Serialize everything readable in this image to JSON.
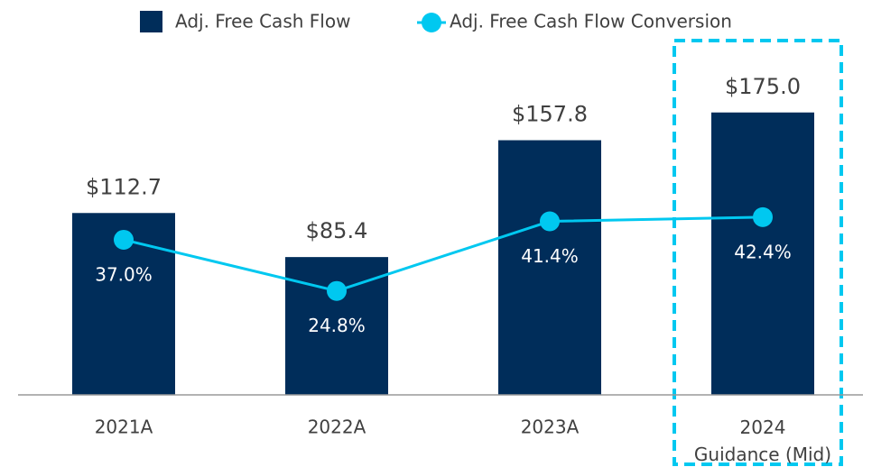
{
  "chart_data": {
    "type": "bar",
    "categories": [
      "2021A",
      "2022A",
      "2023A",
      "2024\nGuidance (Mid)"
    ],
    "series": [
      {
        "name": "Adj. Free Cash Flow",
        "type": "bar",
        "color": "#002d5a",
        "values": [
          112.7,
          85.4,
          157.8,
          175.0
        ],
        "value_labels": [
          "$112.7",
          "$85.4",
          "$157.8",
          "$175.0"
        ]
      },
      {
        "name": "Adj. Free Cash Flow Conversion",
        "type": "line",
        "axis": "y2",
        "color": "#00c8f0",
        "values": [
          37.0,
          24.8,
          41.4,
          42.4
        ],
        "value_labels": [
          "37.0%",
          "24.8%",
          "41.4%",
          "42.4%"
        ]
      }
    ],
    "ylim": [
      0,
      200
    ],
    "y2lim": [
      0,
      77
    ],
    "legend": "top"
  }
}
